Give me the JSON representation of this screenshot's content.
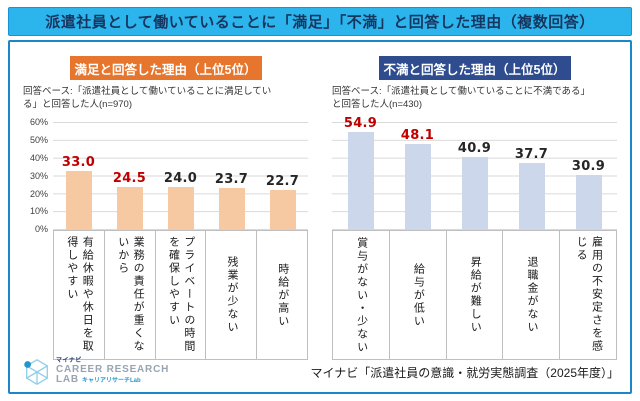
{
  "title": "派遣社員として働いていることに「満足」「不満」と回答した理由（複数回答）",
  "panels": [
    {
      "header": "満足と回答した理由（上位5位）",
      "base_note": "回答ベース:「派遣社員として働いていることに満足している」と回答した人(n=970)"
    },
    {
      "header": "不満と回答した理由（上位5位）",
      "base_note": "回答ベース:「派遣社員として働いていることに不満である」と回答した人(n=430)"
    }
  ],
  "chart_data": [
    {
      "type": "bar",
      "title": "満足と回答した理由（上位5位）",
      "categories": [
        "有給休暇や休日を取得しやすい",
        "業務の責任が重くないから",
        "プライベートの時間を確保しやすい",
        "残業が少ない",
        "時給が高い"
      ],
      "values": [
        33.0,
        24.5,
        24.0,
        23.7,
        22.7
      ],
      "unit": "%",
      "ylim": [
        0,
        60
      ],
      "yticks": [
        "60%",
        "50%",
        "40%",
        "30%",
        "20%",
        "10%",
        "0%"
      ],
      "yaxis_visible": true,
      "grid": true,
      "legend": "none",
      "bar_color": "#f7c9a3",
      "value_label_colors": [
        "#c00000",
        "#c00000",
        "#262626",
        "#262626",
        "#262626"
      ]
    },
    {
      "type": "bar",
      "title": "不満と回答した理由（上位5位）",
      "categories": [
        "賞与がない・少ない",
        "給与が低い",
        "昇給が難しい",
        "退職金がない",
        "雇用の不安定さを感じる"
      ],
      "values": [
        54.9,
        48.1,
        40.9,
        37.7,
        30.9
      ],
      "unit": "%",
      "ylim": [
        0,
        60
      ],
      "yticks": [],
      "yaxis_visible": false,
      "grid": true,
      "legend": "none",
      "bar_color": "#ccd7eb",
      "value_label_colors": [
        "#c00000",
        "#c00000",
        "#262626",
        "#262626",
        "#262626"
      ]
    }
  ],
  "footer": {
    "logo": {
      "brand": "マイナビ",
      "line1": "CAREER RESEARCH",
      "line2": "LAB",
      "line2_jp": "キャリアリサーチLab"
    },
    "source": "マイナビ「派遣社員の意識・就労実態調査（2025年度）」"
  },
  "colors": {
    "accent_cyan": "#2cb5ec",
    "border_blue": "#1d86c8",
    "orange_badge": "#e6762e",
    "navy_badge": "#2f4c8e",
    "highlight_red": "#c00000",
    "gridline": "#d9d9d9",
    "satisfied_bar": "#f7c9a3",
    "dissatisfied_bar": "#ccd7eb"
  }
}
